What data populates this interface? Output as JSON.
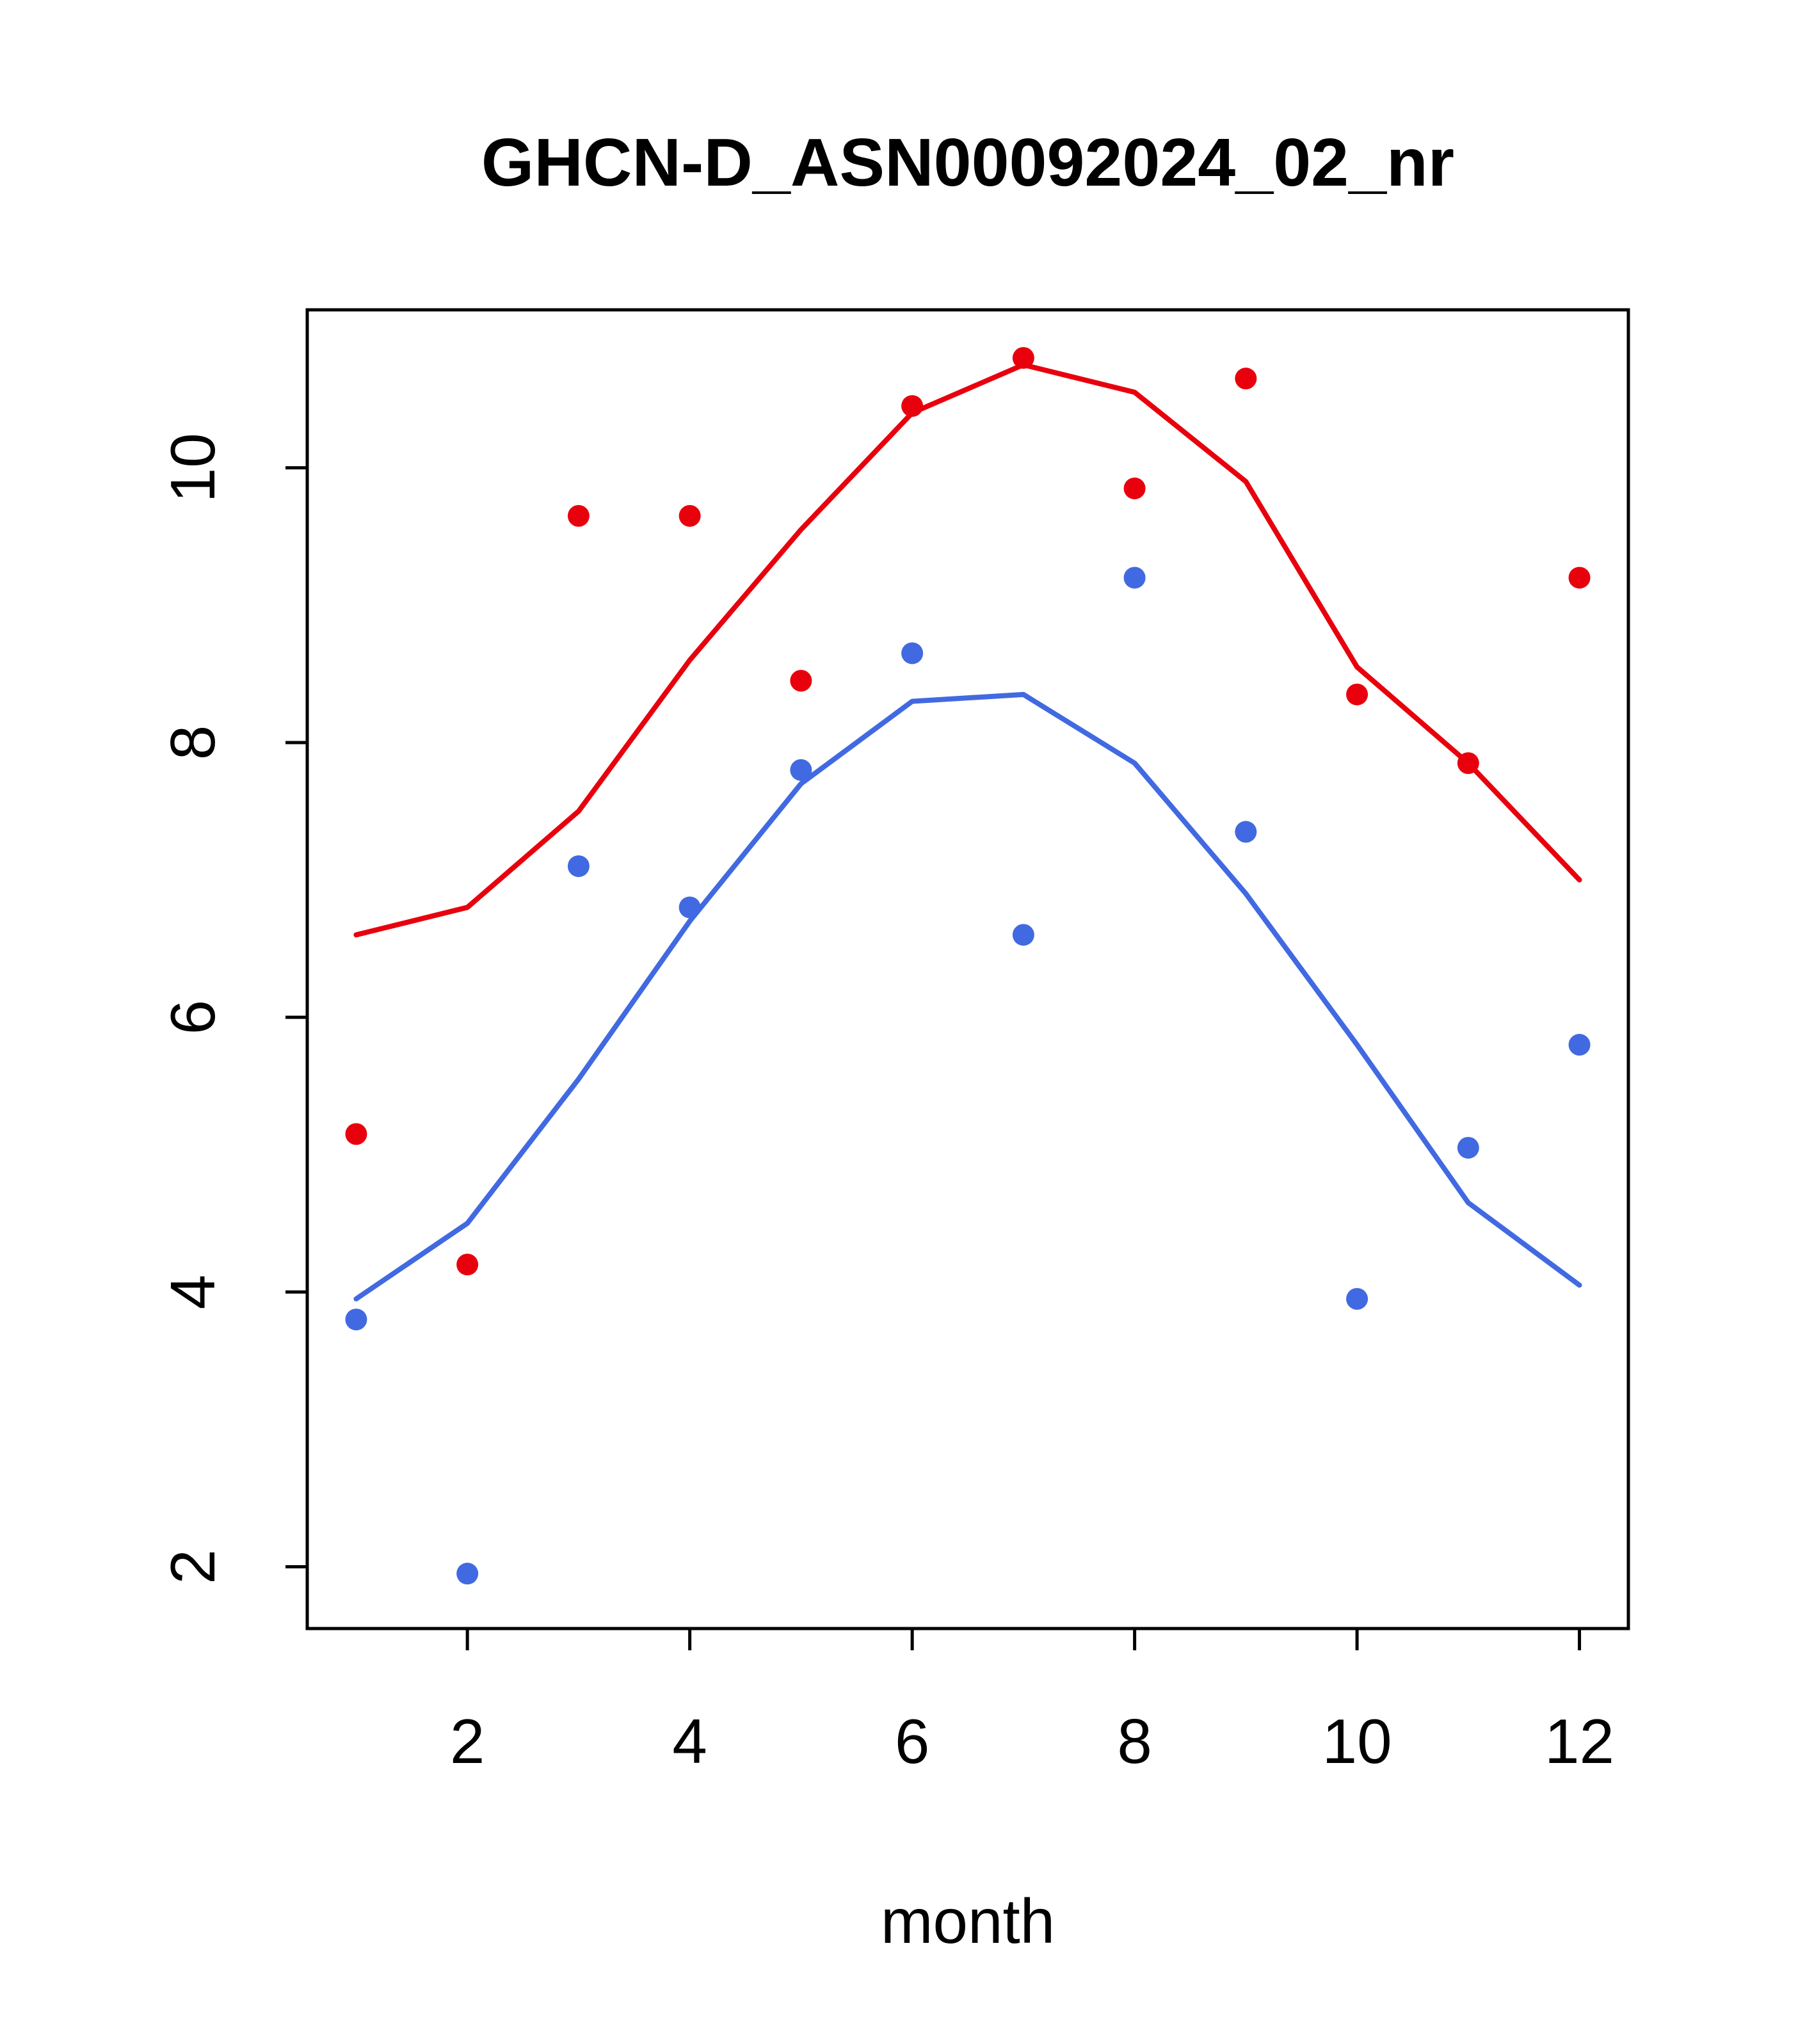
{
  "title": "GHCN-D_ASN00092024_02_nr",
  "xlabel": "month",
  "colors": {
    "red": "#e8000d",
    "blue": "#4169e1",
    "axis": "#000000",
    "background": "#ffffff"
  },
  "chart_data": {
    "type": "scatter",
    "title": "GHCN-D_ASN00092024_02_nr",
    "xlabel": "month",
    "ylabel": "",
    "x": [
      1,
      2,
      3,
      4,
      5,
      6,
      7,
      8,
      9,
      10,
      11,
      12
    ],
    "series": [
      {
        "name": "red-line",
        "type": "line",
        "color": "#e8000d",
        "values": [
          6.6,
          6.8,
          7.5,
          8.6,
          9.55,
          10.4,
          10.75,
          10.55,
          9.9,
          8.55,
          7.85,
          7.0
        ]
      },
      {
        "name": "blue-line",
        "type": "line",
        "color": "#4169e1",
        "values": [
          3.95,
          4.5,
          5.55,
          6.7,
          7.7,
          8.3,
          8.35,
          7.85,
          6.9,
          5.8,
          4.65,
          4.05
        ]
      },
      {
        "name": "red-points",
        "type": "scatter",
        "color": "#e8000d",
        "values": [
          5.15,
          4.2,
          9.65,
          9.65,
          8.45,
          10.45,
          10.8,
          9.85,
          10.65,
          8.35,
          7.85,
          9.2
        ]
      },
      {
        "name": "blue-points",
        "type": "scatter",
        "color": "#4169e1",
        "values": [
          3.8,
          1.95,
          7.1,
          6.8,
          7.8,
          8.65,
          6.6,
          9.2,
          7.35,
          3.95,
          5.05,
          5.8
        ]
      }
    ],
    "xticks": [
      2,
      4,
      6,
      8,
      10,
      12
    ],
    "yticks": [
      2,
      4,
      6,
      8,
      10
    ],
    "xlim": [
      0.56,
      12.44
    ],
    "ylim": [
      1.55,
      11.15
    ],
    "grid": false,
    "legend": "none"
  }
}
